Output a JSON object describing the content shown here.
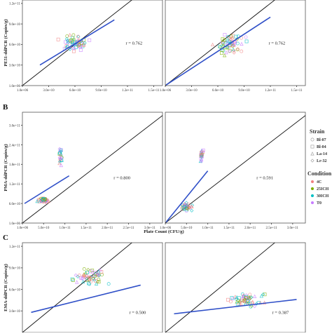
{
  "legend": {
    "strain_title": "Strain",
    "strains": [
      {
        "label": "Bl-07",
        "color": "#888888"
      },
      {
        "label": "Bl-04",
        "color": "#888888"
      },
      {
        "label": "La-14",
        "color": "#888888"
      },
      {
        "label": "Lr-32",
        "color": "#888888"
      }
    ],
    "condition_title": "Condition",
    "conditions": [
      {
        "label": "4C",
        "color": "#F08080"
      },
      {
        "label": "25ICH",
        "color": "#7CAE00"
      },
      {
        "label": "30ICH",
        "color": "#00BFC4"
      },
      {
        "label": "T0",
        "color": "#C77CFF"
      }
    ]
  },
  "chart_data": [
    {
      "type": "scatter",
      "panel_label": "",
      "row": 0,
      "col": 0,
      "ylabel": "PE51-ddPCR (Copies/g)",
      "xlabel": "",
      "xlim": [
        0,
        160000000000.0
      ],
      "ylim": [
        0,
        125000000000.0
      ],
      "xticks": [
        {
          "v": 0,
          "t": "1.0e+06"
        },
        {
          "v": 30000000000.0,
          "t": "3.0e+10"
        },
        {
          "v": 60000000000.0,
          "t": "6.0e+10"
        },
        {
          "v": 90000000000.0,
          "t": "9.0e+10"
        },
        {
          "v": 120000000000.0,
          "t": "1.2e+11"
        },
        {
          "v": 150000000000.0,
          "t": "1.5e+11"
        }
      ],
      "yticks": [
        {
          "v": 0,
          "t": "1.0e+06"
        },
        {
          "v": 30000000000.0,
          "t": "3.0e+10"
        },
        {
          "v": 60000000000.0,
          "t": "6.0e+10"
        },
        {
          "v": 90000000000.0,
          "t": "9.0e+10"
        },
        {
          "v": 120000000000.0,
          "t": "1.2e+11"
        }
      ],
      "r_label": "r = 0.762",
      "r_pos": [
        118000000000.0,
        60000000000.0
      ],
      "fit": [
        [
          20000000000.0,
          30000000000.0
        ],
        [
          105000000000.0,
          96000000000.0
        ]
      ],
      "clusters": [
        {
          "cx": 60000000000.0,
          "cy": 62000000000.0,
          "sx": 25000000000.0,
          "sy": 20000000000.0,
          "n": 60
        }
      ]
    },
    {
      "type": "scatter",
      "panel_label": "",
      "row": 0,
      "col": 1,
      "ylabel": "",
      "xlabel": "",
      "xlim": [
        0,
        160000000000.0
      ],
      "ylim": [
        0,
        125000000000.0
      ],
      "xticks": [
        {
          "v": 0,
          "t": "1.0e+06"
        },
        {
          "v": 30000000000.0,
          "t": "3.0e+10"
        },
        {
          "v": 60000000000.0,
          "t": "6.0e+10"
        },
        {
          "v": 90000000000.0,
          "t": "9.0e+10"
        },
        {
          "v": 120000000000.0,
          "t": "1.2e+11"
        },
        {
          "v": 150000000000.0,
          "t": "1.5e+11"
        }
      ],
      "yticks": [],
      "r_label": "r = 0.762",
      "r_pos": [
        118000000000.0,
        60000000000.0
      ],
      "fit": [
        [
          1000000000.0,
          1000000000.0
        ],
        [
          120000000000.0,
          100000000000.0
        ]
      ],
      "clusters": [
        {
          "cx": 75000000000.0,
          "cy": 60000000000.0,
          "sx": 25000000000.0,
          "sy": 25000000000.0,
          "n": 60
        }
      ]
    },
    {
      "type": "scatter",
      "panel_label": "B",
      "row": 1,
      "col": 0,
      "ylabel": "PMA-ddPCR (Copies/g)",
      "xlabel": "Plate Count (CFU/g)",
      "xlim": [
        0,
        330000000000.0
      ],
      "ylim": [
        0,
        340000000000.0
      ],
      "xticks": [
        {
          "v": 0,
          "t": "1.0e+06"
        },
        {
          "v": 50000000000.0,
          "t": "5.0e+10"
        },
        {
          "v": 100000000000.0,
          "t": "1.0e+11"
        },
        {
          "v": 150000000000.0,
          "t": "1.5e+11"
        },
        {
          "v": 200000000000.0,
          "t": "2.0e+11"
        },
        {
          "v": 250000000000.0,
          "t": "2.5e+11"
        },
        {
          "v": 300000000000.0,
          "t": "3.0e+11"
        }
      ],
      "yticks": [
        {
          "v": 0,
          "t": "1.0e+06"
        },
        {
          "v": 60000000000.0,
          "t": "6.0e+10"
        },
        {
          "v": 120000000000.0,
          "t": "1.2e+11"
        },
        {
          "v": 180000000000.0,
          "t": "1.8e+11"
        },
        {
          "v": 240000000000.0,
          "t": "2.4e+11"
        },
        {
          "v": 300000000000.0,
          "t": "3.0e+11"
        }
      ],
      "r_label": "r = 0.800",
      "r_pos": [
        215000000000.0,
        135000000000.0
      ],
      "fit": [
        [
          5000000000.0,
          60000000000.0
        ],
        [
          110000000000.0,
          145000000000.0
        ]
      ],
      "clusters": [
        {
          "cx": 50000000000.0,
          "cy": 70000000000.0,
          "sx": 20000000000.0,
          "sy": 10000000000.0,
          "n": 45
        },
        {
          "cx": 90000000000.0,
          "cy": 205000000000.0,
          "sx": 6000000000.0,
          "sy": 50000000000.0,
          "n": 22
        }
      ]
    },
    {
      "type": "scatter",
      "panel_label": "",
      "row": 1,
      "col": 1,
      "ylabel": "",
      "xlabel": "",
      "xlim": [
        0,
        330000000000.0
      ],
      "ylim": [
        0,
        340000000000.0
      ],
      "xticks": [
        {
          "v": 0,
          "t": "1.0e+06"
        },
        {
          "v": 50000000000.0,
          "t": "5.0e+10"
        },
        {
          "v": 100000000000.0,
          "t": "1.0e+11"
        },
        {
          "v": 150000000000.0,
          "t": "1.5e+11"
        },
        {
          "v": 200000000000.0,
          "t": "2.0e+11"
        },
        {
          "v": 250000000000.0,
          "t": "2.5e+11"
        },
        {
          "v": 300000000000.0,
          "t": "3.0e+11"
        }
      ],
      "yticks": [],
      "r_label": "r = 0.591",
      "r_pos": [
        215000000000.0,
        135000000000.0
      ],
      "fit": [
        [
          2000000000.0,
          3000000000.0
        ],
        [
          100000000000.0,
          160000000000.0
        ]
      ],
      "clusters": [
        {
          "cx": 50000000000.0,
          "cy": 50000000000.0,
          "sx": 20000000000.0,
          "sy": 20000000000.0,
          "n": 40
        },
        {
          "cx": 85000000000.0,
          "cy": 205000000000.0,
          "sx": 6000000000.0,
          "sy": 40000000000.0,
          "n": 20
        }
      ]
    },
    {
      "type": "scatter",
      "panel_label": "C",
      "row": 2,
      "col": 0,
      "ylabel": "EMA-ddPCR (Copies/g)",
      "xlabel": "",
      "xlim": [
        0,
        160000000000.0
      ],
      "ylim": [
        0,
        125000000000.0
      ],
      "xticks": [],
      "yticks": [
        {
          "v": 30000000000.0,
          "t": "3.0e+10"
        },
        {
          "v": 60000000000.0,
          "t": "6.0e+10"
        },
        {
          "v": 90000000000.0,
          "t": "9.0e+10"
        },
        {
          "v": 120000000000.0,
          "t": "1.2e+11"
        }
      ],
      "r_label": "r = 0.500",
      "r_pos": [
        122000000000.0,
        26000000000.0
      ],
      "fit": [
        [
          10000000000.0,
          28000000000.0
        ],
        [
          135000000000.0,
          66000000000.0
        ]
      ],
      "clusters": [
        {
          "cx": 75000000000.0,
          "cy": 78000000000.0,
          "sx": 30000000000.0,
          "sy": 20000000000.0,
          "n": 60
        }
      ]
    },
    {
      "type": "scatter",
      "panel_label": "",
      "row": 2,
      "col": 1,
      "ylabel": "",
      "xlabel": "",
      "xlim": [
        0,
        160000000000.0
      ],
      "ylim": [
        0,
        125000000000.0
      ],
      "xticks": [],
      "yticks": [],
      "r_label": "r = 0.387",
      "r_pos": [
        122000000000.0,
        26000000000.0
      ],
      "fit": [
        [
          10000000000.0,
          26000000000.0
        ],
        [
          150000000000.0,
          46000000000.0
        ]
      ],
      "clusters": [
        {
          "cx": 90000000000.0,
          "cy": 46000000000.0,
          "sx": 35000000000.0,
          "sy": 15000000000.0,
          "n": 60
        }
      ]
    }
  ]
}
